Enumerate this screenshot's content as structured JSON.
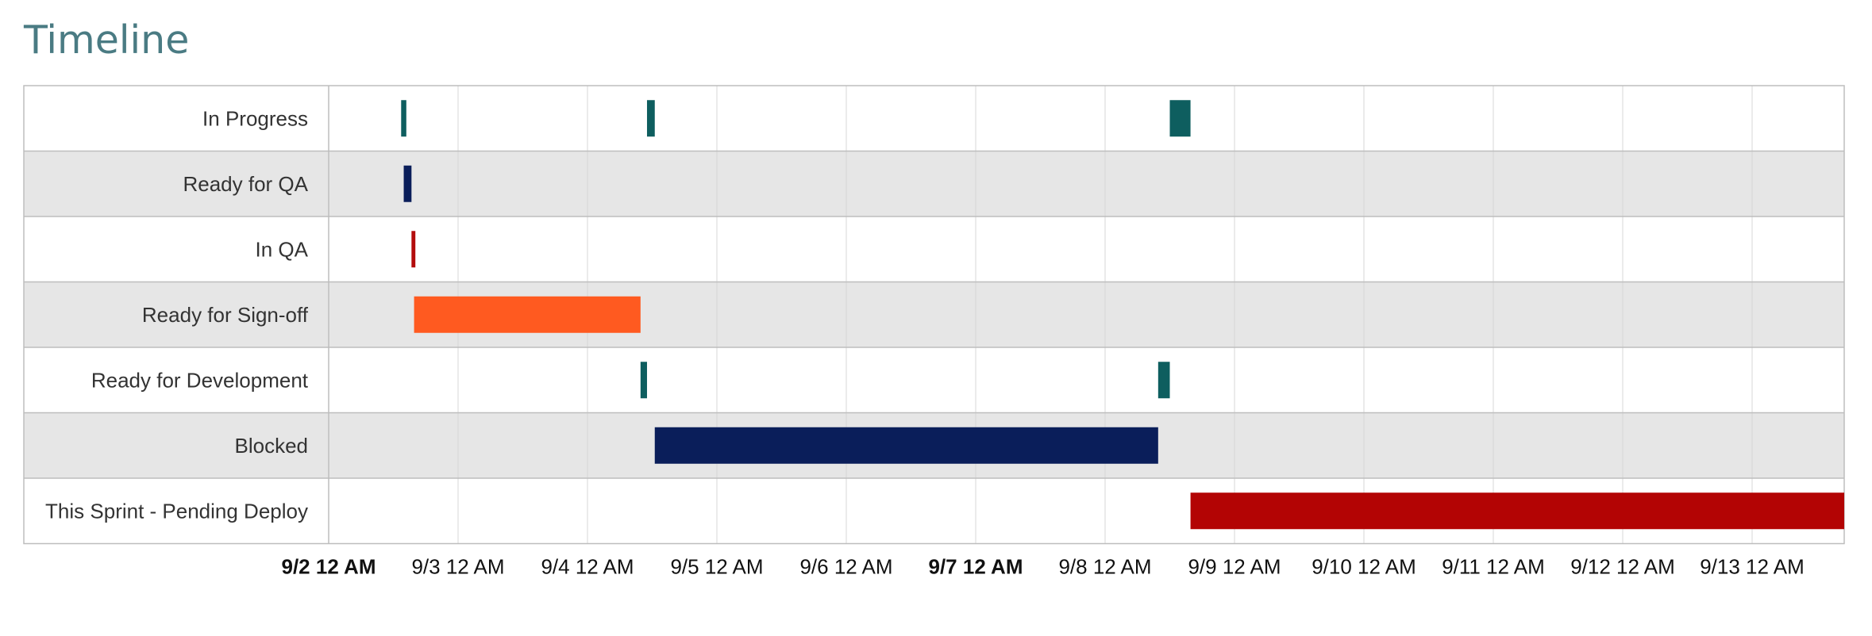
{
  "page": {
    "title": "Timeline"
  },
  "chart_data": {
    "type": "timeline",
    "title": "Timeline",
    "x_ticks": [
      {
        "label": "9/2 12 AM",
        "day": 0,
        "bold": true
      },
      {
        "label": "9/3 12 AM",
        "day": 1,
        "bold": false
      },
      {
        "label": "9/4 12 AM",
        "day": 2,
        "bold": false
      },
      {
        "label": "9/5 12 AM",
        "day": 3,
        "bold": false
      },
      {
        "label": "9/6 12 AM",
        "day": 4,
        "bold": false
      },
      {
        "label": "9/7 12 AM",
        "day": 5,
        "bold": true
      },
      {
        "label": "9/8 12 AM",
        "day": 6,
        "bold": false
      },
      {
        "label": "9/9 12 AM",
        "day": 7,
        "bold": false
      },
      {
        "label": "9/10 12 AM",
        "day": 8,
        "bold": false
      },
      {
        "label": "9/11 12 AM",
        "day": 9,
        "bold": false
      },
      {
        "label": "9/12 12 AM",
        "day": 10,
        "bold": false
      },
      {
        "label": "9/13 12 AM",
        "day": 11,
        "bold": false
      }
    ],
    "x_range_days": [
      0,
      11.72
    ],
    "rows": [
      {
        "label": "In Progress",
        "color": "#0e5e5f",
        "bars": [
          [
            0.56,
            0.6
          ],
          [
            2.46,
            2.52
          ],
          [
            6.5,
            6.66
          ]
        ]
      },
      {
        "label": "Ready for QA",
        "color": "#0a1e5a",
        "bars": [
          [
            0.58,
            0.64
          ]
        ]
      },
      {
        "label": "In QA",
        "color": "#b30c0c",
        "bars": [
          [
            0.64,
            0.67
          ]
        ]
      },
      {
        "label": "Ready for Sign-off",
        "color": "#ff5a20",
        "bars": [
          [
            0.66,
            2.41
          ]
        ]
      },
      {
        "label": "Ready for Development",
        "color": "#0e5e5f",
        "bars": [
          [
            2.41,
            2.46
          ],
          [
            6.41,
            6.5
          ]
        ]
      },
      {
        "label": "Blocked",
        "color": "#0a1e5a",
        "bars": [
          [
            2.52,
            6.41
          ]
        ]
      },
      {
        "label": "This Sprint - Pending Deploy",
        "color": "#b30404",
        "bars": [
          [
            6.66,
            11.72
          ]
        ]
      }
    ]
  }
}
